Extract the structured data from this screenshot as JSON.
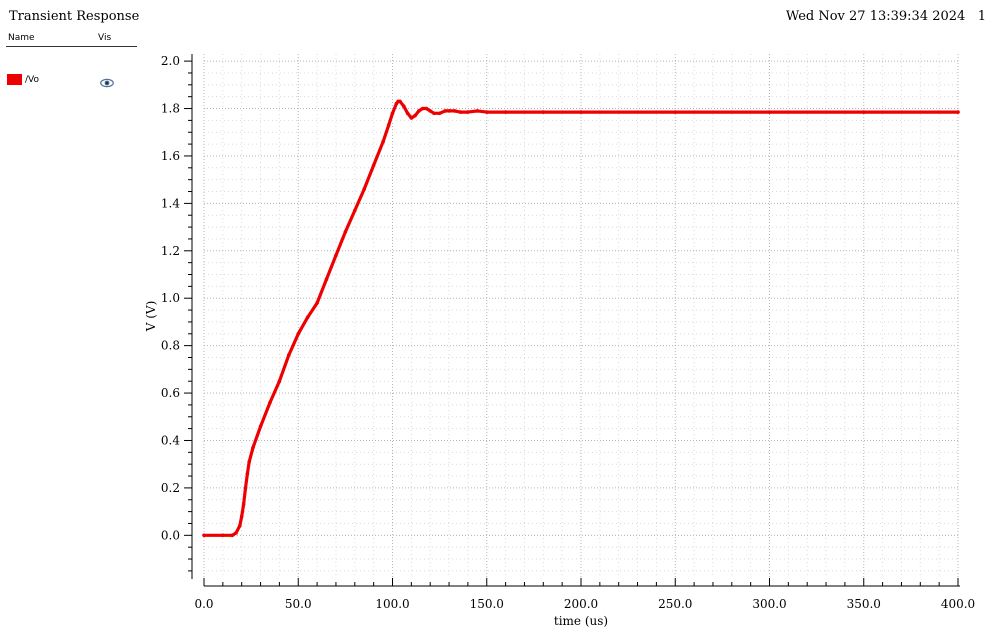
{
  "header": {
    "title": "Transient Response",
    "datetime": "Wed Nov 27 13:39:34 2024",
    "page_number": "1"
  },
  "legend": {
    "col_name": "Name",
    "col_vis": "Vis",
    "items": [
      {
        "label": "/Vo",
        "color": "#ee0000",
        "visible": true,
        "icon": "eye-icon"
      }
    ]
  },
  "chart_data": {
    "type": "line",
    "title": "Transient Response",
    "xlabel": "time (us)",
    "ylabel": "V (V)",
    "xlim": [
      0,
      400
    ],
    "ylim": [
      -0.18,
      2.03
    ],
    "xticks": [
      0,
      50,
      100,
      150,
      200,
      250,
      300,
      350,
      400
    ],
    "xtick_labels": [
      "0.0",
      "50.0",
      "100.0",
      "150.0",
      "200.0",
      "250.0",
      "300.0",
      "350.0",
      "400.0"
    ],
    "yticks": [
      0.0,
      0.2,
      0.4,
      0.6,
      0.8,
      1.0,
      1.2,
      1.4,
      1.6,
      1.8,
      2.0
    ],
    "ytick_labels": [
      "0.0",
      "0.2",
      "0.4",
      "0.6",
      "0.8",
      "1.0",
      "1.2",
      "1.4",
      "1.6",
      "1.8",
      "2.0"
    ],
    "grid": true,
    "series": [
      {
        "name": "/Vo",
        "color": "#ee0000",
        "x": [
          0,
          10,
          15,
          17,
          19,
          20,
          21,
          22,
          23,
          24,
          26,
          30,
          35,
          40,
          45,
          50,
          55,
          60,
          65,
          70,
          75,
          80,
          85,
          90,
          95,
          98,
          100,
          102,
          103,
          104,
          106,
          108,
          110,
          112,
          114,
          116,
          118,
          120,
          122,
          125,
          128,
          130,
          133,
          136,
          140,
          145,
          150,
          160,
          180,
          200,
          250,
          300,
          350,
          400
        ],
        "y": [
          0.0,
          0.0,
          0.0,
          0.01,
          0.04,
          0.08,
          0.13,
          0.2,
          0.26,
          0.31,
          0.37,
          0.46,
          0.56,
          0.65,
          0.76,
          0.85,
          0.92,
          0.98,
          1.08,
          1.18,
          1.28,
          1.37,
          1.46,
          1.56,
          1.66,
          1.73,
          1.78,
          1.82,
          1.83,
          1.83,
          1.81,
          1.78,
          1.76,
          1.77,
          1.79,
          1.8,
          1.8,
          1.79,
          1.78,
          1.78,
          1.79,
          1.79,
          1.79,
          1.785,
          1.785,
          1.79,
          1.785,
          1.785,
          1.785,
          1.785,
          1.785,
          1.785,
          1.785,
          1.785
        ]
      }
    ]
  }
}
